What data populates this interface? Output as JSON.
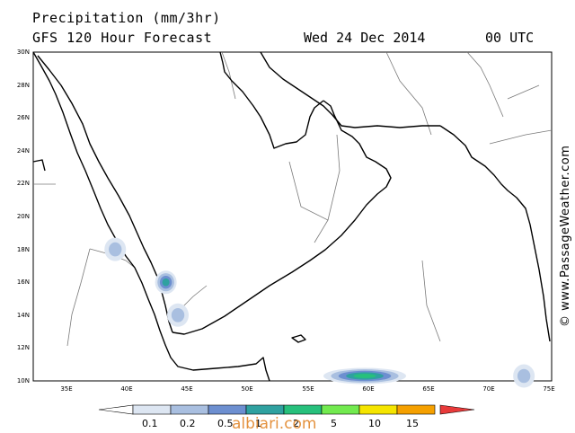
{
  "header": {
    "title": "Precipitation (mm/3hr)",
    "subtitle": "GFS 120 Hour Forecast",
    "date": "Wed 24 Dec 2014",
    "time": "00 UTC"
  },
  "axes": {
    "lat_labels": [
      "30N",
      "28N",
      "26N",
      "24N",
      "22N",
      "20N",
      "18N",
      "16N",
      "14N",
      "12N",
      "10N"
    ],
    "lon_labels": [
      "35E",
      "40E",
      "45E",
      "50E",
      "55E",
      "60E",
      "65E",
      "70E",
      "75E"
    ],
    "lat_range": [
      10,
      30
    ],
    "lon_range": [
      32,
      75
    ]
  },
  "credit": "© www.PassageWeather.com",
  "watermark": "albiari.com",
  "colorbar": {
    "labels": [
      "0.1",
      "0.2",
      "0.5",
      "1",
      "2",
      "5",
      "10",
      "15"
    ],
    "colors": [
      "#dde6f2",
      "#a9bfe0",
      "#6d8fd0",
      "#2fa1a0",
      "#27c07c",
      "#72ea4f",
      "#f5e500",
      "#f5a000",
      "#e83a3a"
    ]
  },
  "precip_cells": [
    {
      "lon": 38.8,
      "lat": 18.0,
      "level": 1
    },
    {
      "lon": 43.0,
      "lat": 16.0,
      "level": 3
    },
    {
      "lon": 44.0,
      "lat": 14.0,
      "level": 1
    },
    {
      "lon": 59.5,
      "lat": 10.3,
      "level": 4
    },
    {
      "lon": 72.7,
      "lat": 10.3,
      "level": 1
    }
  ]
}
